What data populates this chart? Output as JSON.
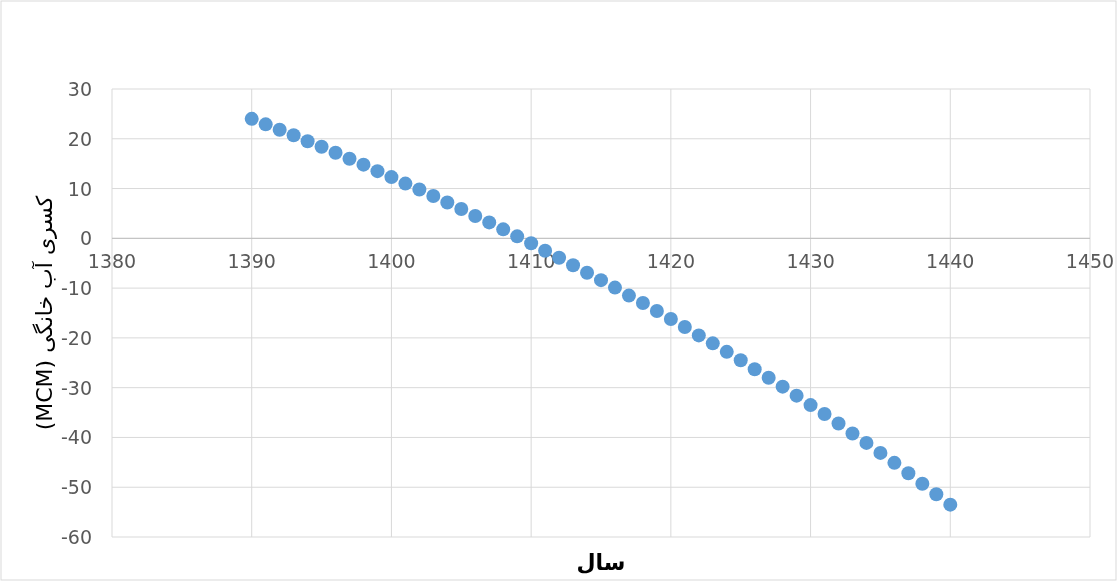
{
  "chart_data": {
    "type": "scatter",
    "xlabel": "سال",
    "ylabel": "کسری آب خانگی (MCM)",
    "x": [
      1390,
      1391,
      1392,
      1393,
      1394,
      1395,
      1396,
      1397,
      1398,
      1399,
      1400,
      1401,
      1402,
      1403,
      1404,
      1405,
      1406,
      1407,
      1408,
      1409,
      1410,
      1411,
      1412,
      1413,
      1414,
      1415,
      1416,
      1417,
      1418,
      1419,
      1420,
      1421,
      1422,
      1423,
      1424,
      1425,
      1426,
      1427,
      1428,
      1429,
      1430,
      1431,
      1432,
      1433,
      1434,
      1435,
      1436,
      1437,
      1438,
      1439,
      1440
    ],
    "values": [
      24,
      22.9,
      21.8,
      20.7,
      19.5,
      18.4,
      17.2,
      16.0,
      14.8,
      13.5,
      12.3,
      11.0,
      9.8,
      8.5,
      7.2,
      5.9,
      4.5,
      3.2,
      1.8,
      0.4,
      -1.0,
      -2.5,
      -3.9,
      -5.4,
      -6.9,
      -8.4,
      -9.9,
      -11.5,
      -13.0,
      -14.6,
      -16.2,
      -17.8,
      -19.5,
      -21.1,
      -22.8,
      -24.5,
      -26.3,
      -28.0,
      -29.8,
      -31.6,
      -33.5,
      -35.3,
      -37.2,
      -39.2,
      -41.1,
      -43.1,
      -45.1,
      -47.2,
      -49.3,
      -51.4,
      -53.5
    ],
    "color": "#5b9bd5",
    "marker": "circle",
    "grid": true,
    "xlim": [
      1380,
      1450
    ],
    "xticks": [
      1380,
      1390,
      1400,
      1410,
      1420,
      1430,
      1440,
      1450
    ],
    "ylim": [
      -60,
      30
    ],
    "yticks": [
      -60,
      -50,
      -40,
      -30,
      -20,
      -10,
      0,
      10,
      20,
      30
    ]
  }
}
